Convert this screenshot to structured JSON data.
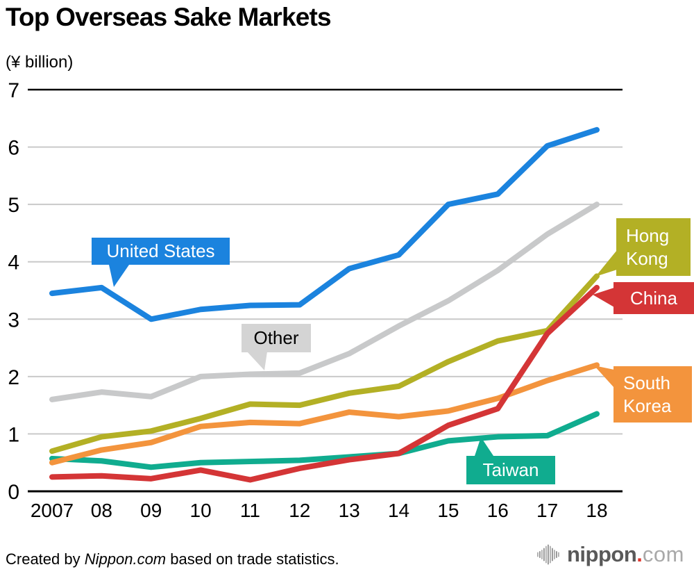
{
  "title": "Top Overseas Sake Markets",
  "unit_label": "(¥ billion)",
  "chart_data": {
    "type": "line",
    "title": "Top Overseas Sake Markets",
    "ylabel": "(¥ billion)",
    "ylim": [
      0,
      7
    ],
    "yticks": [
      0,
      1,
      2,
      3,
      4,
      5,
      6,
      7
    ],
    "grid": true,
    "grid_color": "#c9c9c9",
    "axis_color": "#000000",
    "x_labels": [
      "2007",
      "08",
      "09",
      "10",
      "11",
      "12",
      "13",
      "14",
      "15",
      "16",
      "17",
      "18"
    ],
    "series": [
      {
        "name": "Other",
        "label": "Other",
        "color": "#c8c9ca",
        "label_bg": "#d4d4d4",
        "label_text_color": "#000000",
        "values": [
          1.6,
          1.73,
          1.65,
          2.0,
          2.04,
          2.06,
          2.4,
          2.88,
          3.32,
          3.85,
          4.48,
          5.0
        ]
      },
      {
        "name": "United States",
        "label": "United States",
        "color": "#1b83de",
        "label_bg": "#1b83de",
        "label_text_color": "#ffffff",
        "values": [
          3.45,
          3.55,
          3.0,
          3.17,
          3.24,
          3.25,
          3.88,
          4.12,
          5.0,
          5.18,
          6.02,
          6.3
        ]
      },
      {
        "name": "Hong Kong",
        "label": "Hong Kong",
        "color": "#b3b025",
        "label_bg": "#b3b025",
        "label_text_color": "#ffffff",
        "values": [
          0.7,
          0.95,
          1.05,
          1.27,
          1.52,
          1.5,
          1.71,
          1.83,
          2.26,
          2.62,
          2.8,
          3.75
        ]
      },
      {
        "name": "Taiwan",
        "label": "Taiwan",
        "color": "#10ac8f",
        "label_bg": "#10ac8f",
        "label_text_color": "#ffffff",
        "values": [
          0.57,
          0.53,
          0.42,
          0.5,
          0.52,
          0.54,
          0.6,
          0.66,
          0.88,
          0.95,
          0.97,
          1.35
        ]
      },
      {
        "name": "South Korea",
        "label": "South Korea",
        "color": "#f3943d",
        "label_bg": "#f3943d",
        "label_text_color": "#ffffff",
        "values": [
          0.5,
          0.72,
          0.85,
          1.13,
          1.2,
          1.18,
          1.38,
          1.3,
          1.4,
          1.62,
          1.93,
          2.2
        ]
      },
      {
        "name": "China",
        "label": "China",
        "color": "#d43536",
        "label_bg": "#d43536",
        "label_text_color": "#ffffff",
        "values": [
          0.25,
          0.27,
          0.22,
          0.37,
          0.2,
          0.4,
          0.55,
          0.66,
          1.15,
          1.44,
          2.75,
          3.55
        ]
      }
    ],
    "legend_position": "callouts-on-lines"
  },
  "footer": {
    "credit_prefix": "Created by ",
    "credit_source": "Nippon.com",
    "credit_suffix": " based on trade statistics.",
    "logo_main": "nippon",
    "logo_dot": ".",
    "logo_com": "com",
    "logo_main_color": "#595959",
    "logo_dot_color": "#e0352c",
    "logo_com_color": "#a9a9a9",
    "logo_wave_color": "#8f8f8f"
  }
}
